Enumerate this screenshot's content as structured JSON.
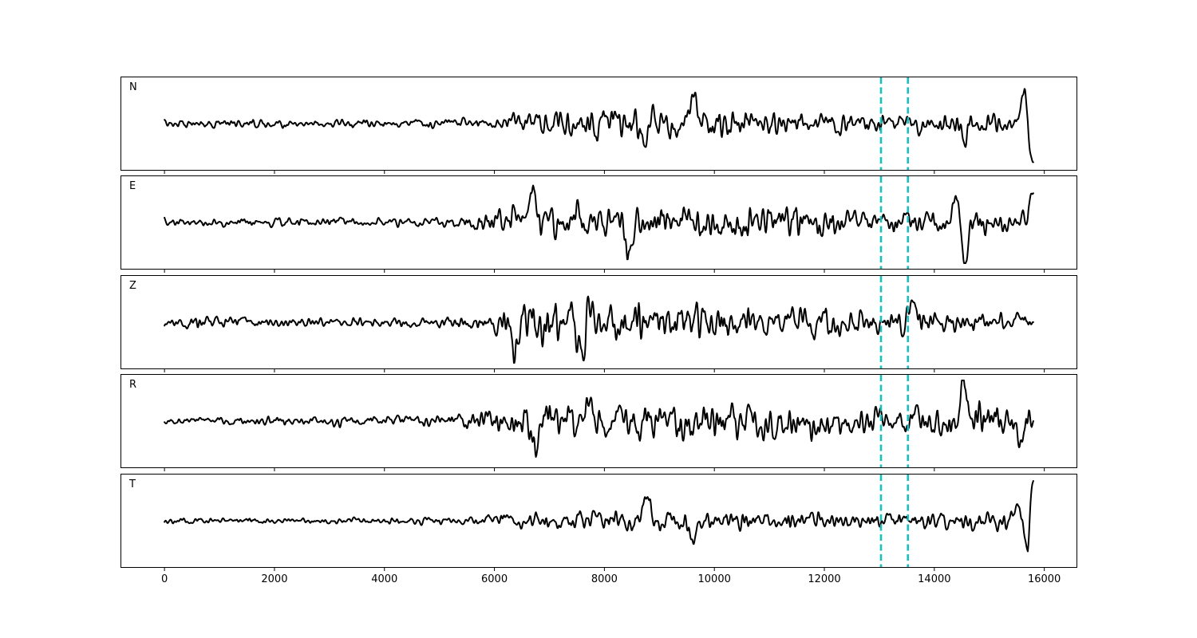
{
  "chart_data": {
    "type": "line",
    "title": "",
    "xlabel": "",
    "ylabel": "",
    "xlim": [
      -800,
      16600
    ],
    "x_ticks": [
      0,
      2000,
      4000,
      6000,
      8000,
      10000,
      12000,
      14000,
      16000
    ],
    "x_tick_labels": [
      "0",
      "2000",
      "4000",
      "6000",
      "8000",
      "10000",
      "12000",
      "14000",
      "16000"
    ],
    "grid": false,
    "legend": "none",
    "x_start": 0,
    "x_end": 15800,
    "vertical_markers": [
      13030,
      13520
    ],
    "marker_color": "#17bfc0",
    "line_color": "#000000",
    "panels": [
      {
        "label": "N",
        "envelope": [
          [
            0,
            0.12
          ],
          [
            2000,
            0.12
          ],
          [
            4000,
            0.13
          ],
          [
            5900,
            0.16
          ],
          [
            6200,
            0.32
          ],
          [
            7000,
            0.45
          ],
          [
            8800,
            0.5
          ],
          [
            9600,
            0.48
          ],
          [
            11000,
            0.4
          ],
          [
            13000,
            0.28
          ],
          [
            14500,
            0.32
          ],
          [
            15400,
            0.36
          ]
        ],
        "features": [
          {
            "x": 8750,
            "y": -0.58
          },
          {
            "x": 9630,
            "y": 0.55
          },
          {
            "x": 14560,
            "y": -0.3
          },
          {
            "x": 15640,
            "y": 0.8
          },
          {
            "x": 15800,
            "y": -0.95
          }
        ],
        "end_value": -0.95
      },
      {
        "label": "E",
        "envelope": [
          [
            0,
            0.12
          ],
          [
            1700,
            0.17
          ],
          [
            4000,
            0.14
          ],
          [
            5400,
            0.25
          ],
          [
            6000,
            0.42
          ],
          [
            6400,
            0.55
          ],
          [
            9000,
            0.62
          ],
          [
            11500,
            0.58
          ],
          [
            13000,
            0.38
          ],
          [
            14500,
            0.45
          ],
          [
            15600,
            0.4
          ]
        ],
        "features": [
          {
            "x": 6700,
            "y": 0.72
          },
          {
            "x": 7700,
            "y": -0.85
          },
          {
            "x": 7720,
            "y": 0.55
          },
          {
            "x": 8450,
            "y": -0.78
          },
          {
            "x": 14560,
            "y": -0.95
          },
          {
            "x": 14390,
            "y": 0.55
          },
          {
            "x": 15800,
            "y": 0.72
          }
        ],
        "end_value": 0.72
      },
      {
        "label": "Z",
        "envelope": [
          [
            0,
            0.12
          ],
          [
            500,
            0.22
          ],
          [
            1000,
            0.18
          ],
          [
            3000,
            0.14
          ],
          [
            5500,
            0.2
          ],
          [
            6100,
            0.42
          ],
          [
            6400,
            0.7
          ],
          [
            7800,
            0.72
          ],
          [
            10000,
            0.5
          ],
          [
            12000,
            0.42
          ],
          [
            14000,
            0.33
          ],
          [
            15800,
            0.3
          ]
        ],
        "features": [
          {
            "x": 6370,
            "y": -0.88
          },
          {
            "x": 7730,
            "y": 0.82
          },
          {
            "x": 7610,
            "y": -0.72
          },
          {
            "x": 13600,
            "y": 0.48
          }
        ],
        "end_value": 0.0
      },
      {
        "label": "R",
        "envelope": [
          [
            0,
            0.12
          ],
          [
            3000,
            0.15
          ],
          [
            5500,
            0.22
          ],
          [
            6200,
            0.45
          ],
          [
            7000,
            0.62
          ],
          [
            9000,
            0.58
          ],
          [
            11000,
            0.55
          ],
          [
            13000,
            0.4
          ],
          [
            14000,
            0.55
          ],
          [
            15800,
            0.58
          ]
        ],
        "features": [
          {
            "x": 14540,
            "y": 1.0
          },
          {
            "x": 6730,
            "y": -0.6
          },
          {
            "x": 7720,
            "y": 0.62
          },
          {
            "x": 15560,
            "y": -0.62
          },
          {
            "x": 13670,
            "y": 0.35
          }
        ],
        "end_value": 0.0
      },
      {
        "label": "T",
        "envelope": [
          [
            0,
            0.1
          ],
          [
            3000,
            0.11
          ],
          [
            5500,
            0.13
          ],
          [
            6200,
            0.25
          ],
          [
            7000,
            0.34
          ],
          [
            8500,
            0.42
          ],
          [
            10000,
            0.34
          ],
          [
            13000,
            0.28
          ],
          [
            14500,
            0.32
          ],
          [
            15200,
            0.34
          ]
        ],
        "features": [
          {
            "x": 8780,
            "y": 0.58
          },
          {
            "x": 9620,
            "y": -0.5
          },
          {
            "x": 15530,
            "y": 0.5
          },
          {
            "x": 15700,
            "y": -0.95
          },
          {
            "x": 15800,
            "y": 0.98
          }
        ],
        "end_value": 0.98
      }
    ]
  }
}
